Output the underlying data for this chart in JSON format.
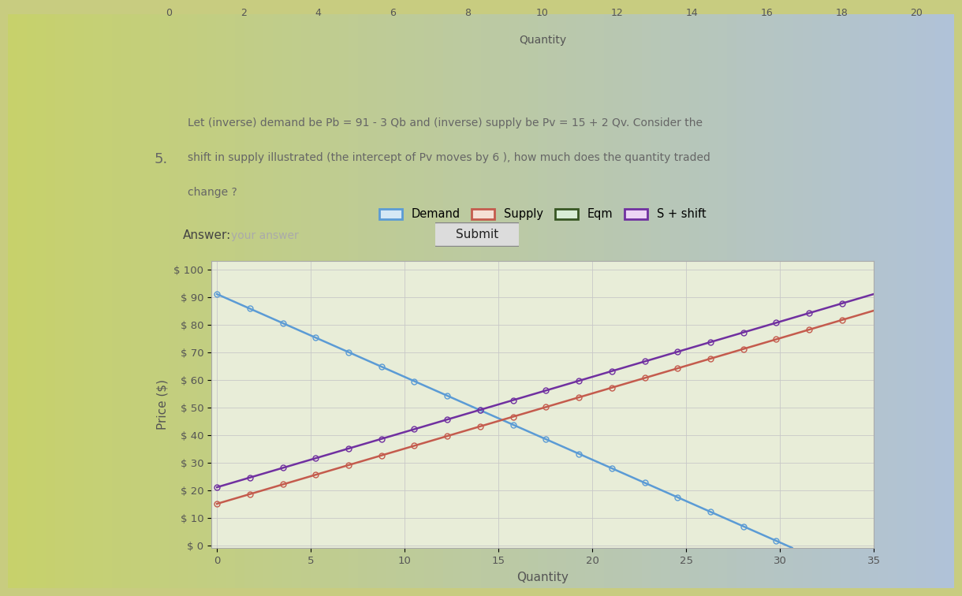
{
  "ylabel": "Price ($)",
  "xlabel": "Quantity",
  "demand_intercept": 91,
  "demand_slope": -3,
  "supply_intercept": 15,
  "supply_slope": 2,
  "supply_shift": 6,
  "q_min": 0,
  "q_max": 30.5,
  "y_min": 0,
  "y_max": 100,
  "yticks": [
    0,
    10,
    20,
    30,
    40,
    50,
    60,
    70,
    80,
    90,
    100
  ],
  "xticks": [
    0,
    5,
    10,
    15,
    20,
    25,
    30,
    35
  ],
  "demand_color": "#5B9BD5",
  "supply_color": "#C45B4D",
  "eqm_color": "#375623",
  "shift_color": "#7030A0",
  "chart_bg": "#E8EDD8",
  "question_text_line1": "Let (inverse) demand be Pb = 91 - 3 Qb and (inverse) supply be Pv = 15 + 2 Qv. Consider the",
  "question_text_line2": "shift in supply illustrated (the intercept of Pv moves by 6 ), how much does the quantity traded",
  "question_text_line3": "change ?",
  "question_number": "5.",
  "answer_label": "Answer:",
  "answer_placeholder": "your answer",
  "submit_text": "Submit",
  "prev_xticks": [
    0,
    2,
    4,
    6,
    8,
    10,
    12,
    14,
    16,
    18,
    20
  ],
  "prev_xlabel": "Quantity",
  "marker_size": 5,
  "line_width": 1.8
}
